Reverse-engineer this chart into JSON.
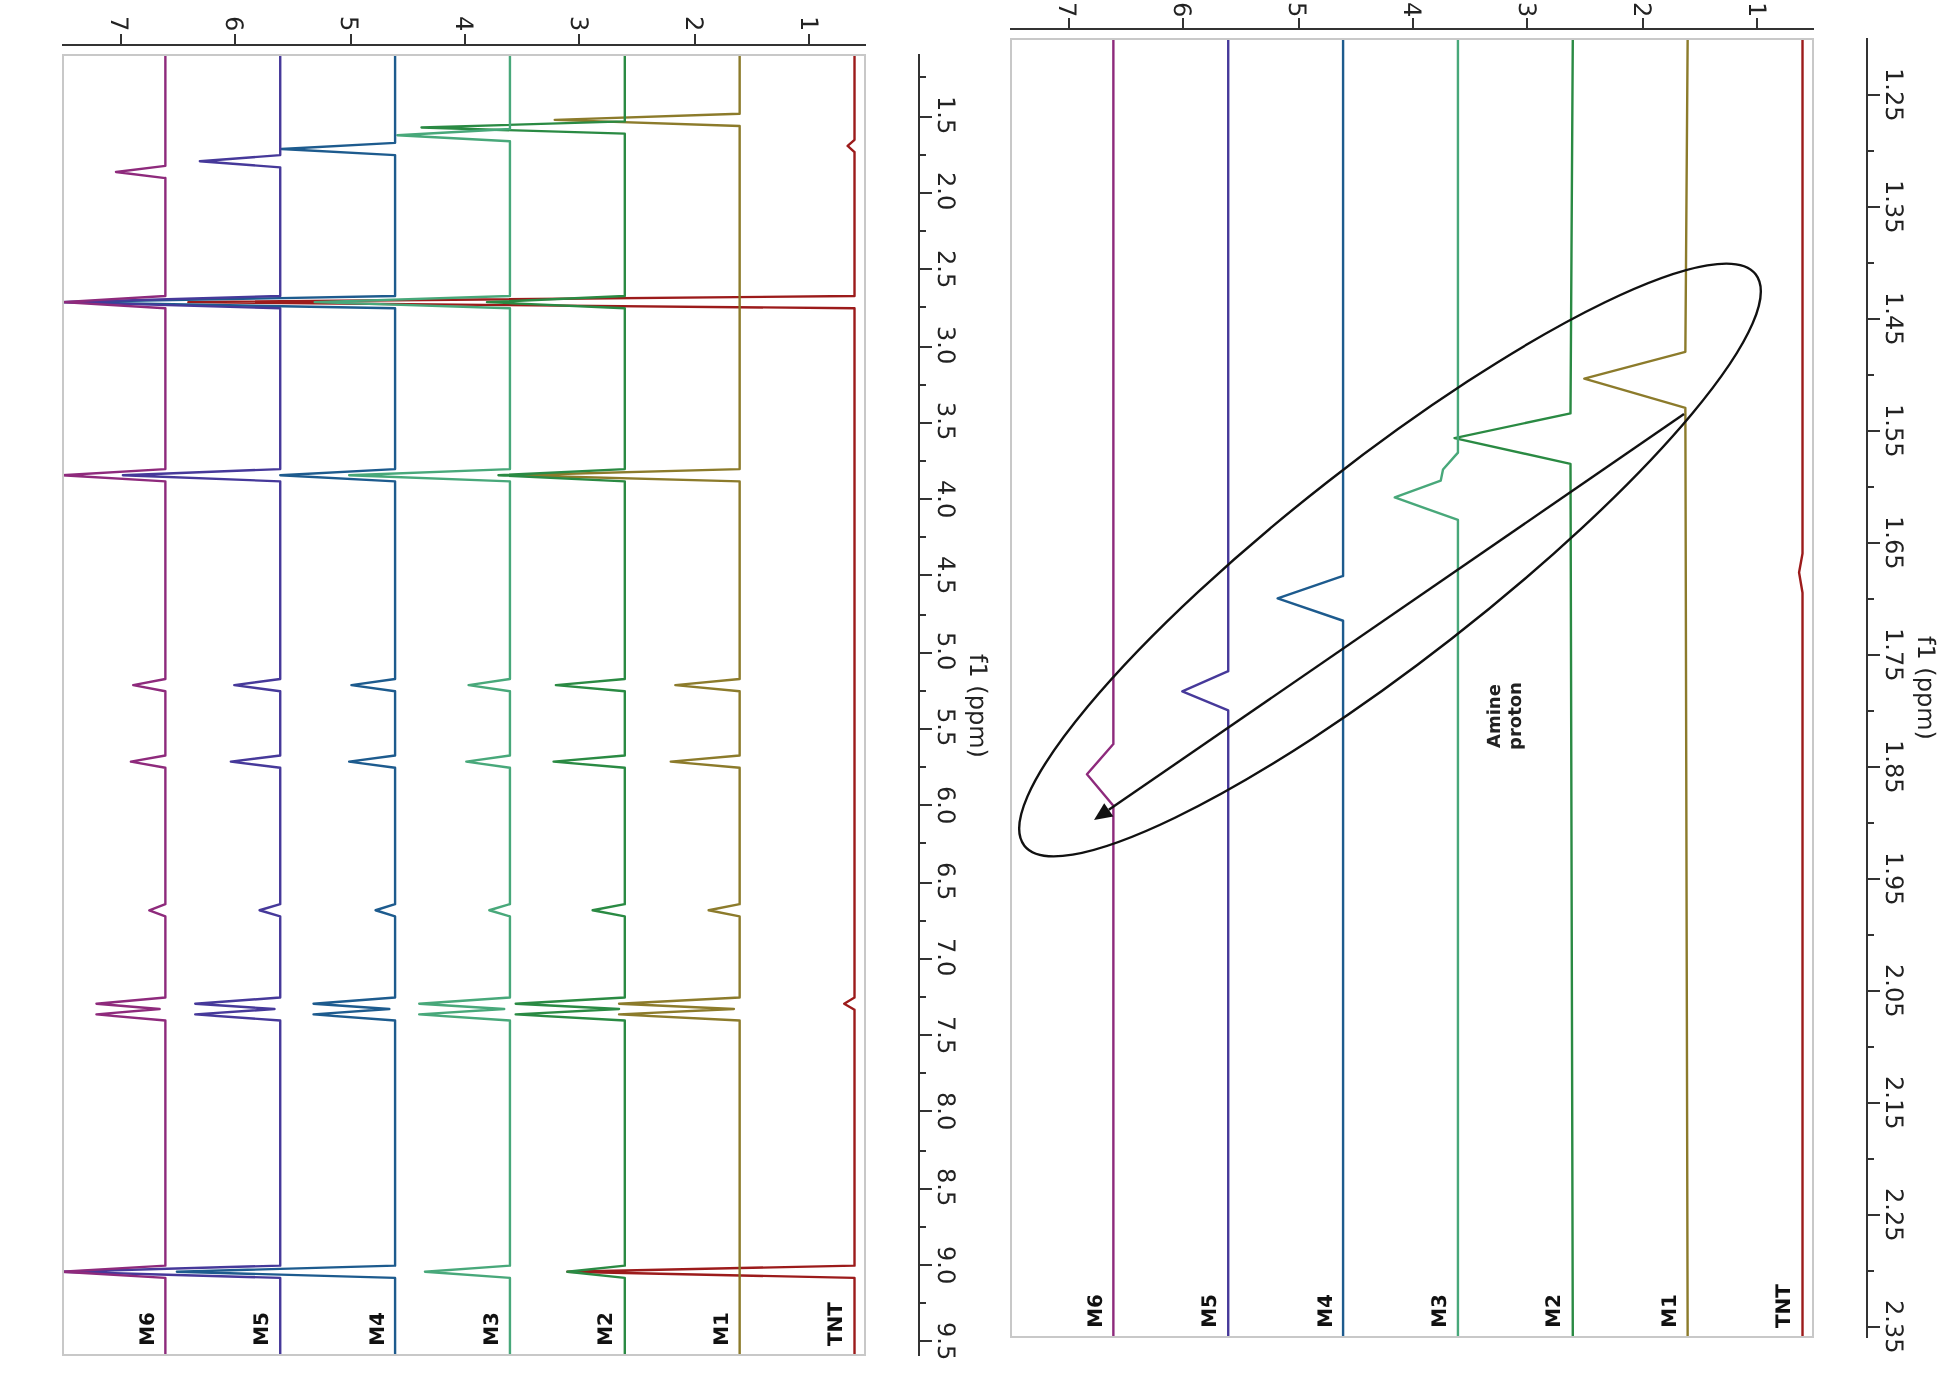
{
  "chart_data": [
    {
      "type": "line",
      "ylabel": "f1 (ppm)",
      "xlim": [
        7.5,
        0.5
      ],
      "ylim": [
        9.6,
        1.1
      ],
      "xticks": [
        1,
        2,
        3,
        4,
        5,
        6,
        7
      ],
      "yticks": [
        {
          "value": 1.25,
          "label": null
        },
        1.5,
        {
          "value": 1.75,
          "label": null
        },
        {
          "value": 2,
          "label": "2.0"
        },
        {
          "value": 2.25,
          "label": null
        },
        2.5,
        {
          "value": 2.75,
          "label": null
        },
        {
          "value": 3,
          "label": "3.0"
        },
        {
          "value": 3.25,
          "label": null
        },
        3.5,
        {
          "value": 3.75,
          "label": null
        },
        {
          "value": 4,
          "label": "4.0"
        },
        {
          "value": 4.25,
          "label": null
        },
        4.5,
        {
          "value": 4.75,
          "label": null
        },
        {
          "value": 5,
          "label": "5.0"
        },
        {
          "value": 5.25,
          "label": null
        },
        5.5,
        {
          "value": 5.75,
          "label": null
        },
        {
          "value": 6,
          "label": "6.0"
        },
        {
          "value": 6.25,
          "label": null
        },
        6.5,
        {
          "value": 6.75,
          "label": null
        },
        {
          "value": 7,
          "label": "7.0"
        },
        {
          "value": 7.25,
          "label": null
        },
        7.5,
        {
          "value": 7.75,
          "label": null
        },
        {
          "value": 8,
          "label": "8.0"
        },
        {
          "value": 8.25,
          "label": null
        },
        8.5,
        {
          "value": 8.75,
          "label": null
        },
        {
          "value": 9,
          "label": "9.0"
        },
        {
          "value": 9.25,
          "label": null
        },
        9.5
      ],
      "series": [
        {
          "name": "M6",
          "color": "#8e2a7c",
          "values": [
            1.1,
            1.83,
            1.87,
            1.91,
            2.68,
            2.72,
            2.76,
            3.81,
            3.85,
            3.89,
            5.18,
            5.22,
            5.26,
            5.68,
            5.72,
            5.76,
            6.65,
            6.69,
            6.73,
            7.26,
            7.3,
            7.335,
            7.37,
            7.41,
            9.01,
            9.05,
            9.09,
            9.6
          ],
          "x": [
            6.6,
            6.6,
            7.03,
            6.6,
            6.6,
            7.5,
            6.6,
            6.6,
            7.5,
            6.6,
            6.6,
            6.88,
            6.6,
            6.6,
            6.9,
            6.6,
            6.6,
            6.74,
            6.6,
            6.6,
            7.2,
            6.65,
            7.2,
            6.6,
            6.6,
            7.5,
            6.6,
            6.6
          ]
        },
        {
          "name": "M5",
          "color": "#46399a",
          "values": [
            1.1,
            1.76,
            1.8,
            1.84,
            2.68,
            2.72,
            2.76,
            3.81,
            3.85,
            3.89,
            5.18,
            5.22,
            5.26,
            5.68,
            5.72,
            5.76,
            6.65,
            6.69,
            6.73,
            7.26,
            7.3,
            7.335,
            7.37,
            7.41,
            9.01,
            9.05,
            9.09,
            9.6
          ],
          "x": [
            5.6,
            5.6,
            6.3,
            5.6,
            5.6,
            7.5,
            5.6,
            5.6,
            6.97,
            5.6,
            5.6,
            6.0,
            5.6,
            5.6,
            6.03,
            5.6,
            5.6,
            5.78,
            5.6,
            5.6,
            6.34,
            5.65,
            6.34,
            5.6,
            5.6,
            7.5,
            5.6,
            5.6
          ]
        },
        {
          "name": "M4",
          "color": "#1d5b8e",
          "values": [
            1.1,
            1.68,
            1.72,
            1.76,
            2.68,
            2.72,
            2.76,
            3.81,
            3.85,
            3.89,
            5.18,
            5.22,
            5.26,
            5.68,
            5.72,
            5.76,
            6.65,
            6.69,
            6.73,
            7.26,
            7.3,
            7.335,
            7.37,
            7.41,
            9.01,
            9.05,
            9.09,
            9.6
          ],
          "x": [
            4.6,
            4.6,
            5.59,
            4.6,
            4.6,
            7.5,
            4.6,
            4.6,
            5.6,
            4.6,
            4.6,
            4.98,
            4.6,
            4.6,
            5.0,
            4.6,
            4.6,
            4.77,
            4.6,
            4.6,
            5.31,
            4.65,
            5.31,
            4.6,
            4.6,
            6.5,
            4.6,
            4.6
          ]
        },
        {
          "name": "M3",
          "color": "#48a87a",
          "values": [
            1.1,
            1.59,
            1.63,
            1.67,
            2.68,
            2.72,
            2.76,
            3.81,
            3.85,
            3.89,
            5.18,
            5.22,
            5.26,
            5.68,
            5.72,
            5.76,
            6.65,
            6.69,
            6.73,
            7.26,
            7.3,
            7.335,
            7.37,
            7.41,
            9.01,
            9.05,
            9.09,
            9.6
          ],
          "x": [
            3.6,
            3.6,
            4.58,
            3.6,
            3.6,
            5.3,
            3.6,
            3.6,
            5.0,
            3.6,
            3.6,
            3.96,
            3.6,
            3.6,
            3.98,
            3.6,
            3.6,
            3.78,
            3.6,
            3.6,
            4.39,
            3.65,
            4.39,
            3.6,
            3.6,
            4.34,
            3.6,
            3.6
          ]
        },
        {
          "name": "M2",
          "color": "#2a8a43",
          "values": [
            1.1,
            1.54,
            1.58,
            1.62,
            2.68,
            2.72,
            2.76,
            3.81,
            3.85,
            3.89,
            5.18,
            5.22,
            5.26,
            5.68,
            5.72,
            5.76,
            6.65,
            6.69,
            6.73,
            7.26,
            7.3,
            7.335,
            7.37,
            7.41,
            9.01,
            9.05,
            9.09,
            9.6
          ],
          "x": [
            2.6,
            2.6,
            4.37,
            2.6,
            2.6,
            3.8,
            2.6,
            2.6,
            3.7,
            2.6,
            2.6,
            3.2,
            2.6,
            2.6,
            3.22,
            2.6,
            2.6,
            2.88,
            2.6,
            2.6,
            3.55,
            2.65,
            3.55,
            2.6,
            2.6,
            3.1,
            2.6,
            2.6
          ]
        },
        {
          "name": "M1",
          "color": "#8c7b2b",
          "values": [
            1.1,
            1.49,
            1.53,
            1.57,
            3.81,
            3.85,
            3.89,
            5.18,
            5.22,
            5.26,
            5.68,
            5.72,
            5.76,
            6.65,
            6.69,
            6.73,
            7.26,
            7.3,
            7.335,
            7.37,
            7.41,
            9.6
          ],
          "x": [
            1.6,
            1.6,
            3.21,
            1.6,
            1.6,
            3.57,
            1.6,
            1.6,
            2.16,
            1.6,
            1.6,
            2.2,
            1.6,
            1.6,
            1.87,
            1.6,
            1.6,
            2.65,
            1.65,
            2.65,
            1.6,
            1.6
          ]
        },
        {
          "name": "TNT",
          "color": "#9c1b1b",
          "values": [
            1.1,
            1.66,
            1.7,
            1.74,
            2.68,
            2.72,
            2.76,
            7.26,
            7.3,
            7.34,
            9.01,
            9.05,
            9.09,
            9.6
          ],
          "x": [
            0.6,
            0.6,
            0.66,
            0.6,
            0.6,
            6.4,
            0.6,
            0.6,
            0.69,
            0.6,
            0.6,
            3.1,
            0.6,
            0.6
          ]
        }
      ]
    },
    {
      "type": "line",
      "ylabel": "f1 (ppm)",
      "xlim": [
        7.5,
        0.5
      ],
      "ylim": [
        2.36,
        1.2
      ],
      "xticks": [
        1,
        2,
        3,
        4,
        5,
        6,
        7
      ],
      "yticks": [
        1.25,
        {
          "value": 1.3,
          "label": null
        },
        1.35,
        {
          "value": 1.4,
          "label": null
        },
        1.45,
        {
          "value": 1.5,
          "label": null
        },
        1.55,
        {
          "value": 1.6,
          "label": null
        },
        1.65,
        {
          "value": 1.7,
          "label": null
        },
        1.75,
        {
          "value": 1.8,
          "label": null
        },
        1.85,
        {
          "value": 1.9,
          "label": null
        },
        1.95,
        {
          "value": 2.0,
          "label": null
        },
        2.05,
        {
          "value": 2.1,
          "label": null
        },
        2.15,
        {
          "value": 2.2,
          "label": null
        },
        2.25,
        {
          "value": 2.3,
          "label": null
        },
        2.35
      ],
      "annotations": [
        "Amine proton"
      ],
      "series": [
        {
          "name": "M6",
          "color": "#8e2a7c",
          "values": [
            1.2,
            1.83,
            1.857,
            1.885,
            2.36
          ],
          "x": [
            6.6,
            6.6,
            6.83,
            6.6,
            6.6
          ]
        },
        {
          "name": "M5",
          "color": "#46399a",
          "values": [
            1.2,
            1.765,
            1.783,
            1.8,
            2.36
          ],
          "x": [
            5.6,
            5.6,
            6.0,
            5.6,
            5.6
          ]
        },
        {
          "name": "M4",
          "color": "#1d5b8e",
          "values": [
            1.2,
            1.68,
            1.7,
            1.72,
            2.36
          ],
          "x": [
            4.6,
            4.6,
            5.17,
            4.6,
            4.6
          ]
        },
        {
          "name": "M3",
          "color": "#48a87a",
          "values": [
            1.2,
            1.57,
            1.585,
            1.595,
            1.61,
            1.63,
            2.36
          ],
          "x": [
            3.6,
            3.6,
            3.73,
            3.75,
            4.15,
            3.6,
            3.6
          ]
        },
        {
          "name": "M2",
          "color": "#2a8a43",
          "values": [
            1.2,
            1.535,
            1.557,
            1.58,
            2.36
          ],
          "x": [
            2.6,
            2.62,
            3.63,
            2.62,
            2.6
          ]
        },
        {
          "name": "M1",
          "color": "#8c7b2b",
          "values": [
            1.2,
            1.48,
            1.504,
            1.53,
            2.36
          ],
          "x": [
            1.6,
            1.62,
            2.5,
            1.62,
            1.6
          ]
        },
        {
          "name": "TNT",
          "color": "#9c1b1b",
          "values": [
            1.2,
            1.66,
            1.677,
            1.695,
            2.36
          ],
          "x": [
            0.6,
            0.6,
            0.63,
            0.6,
            0.6
          ]
        }
      ]
    }
  ]
}
